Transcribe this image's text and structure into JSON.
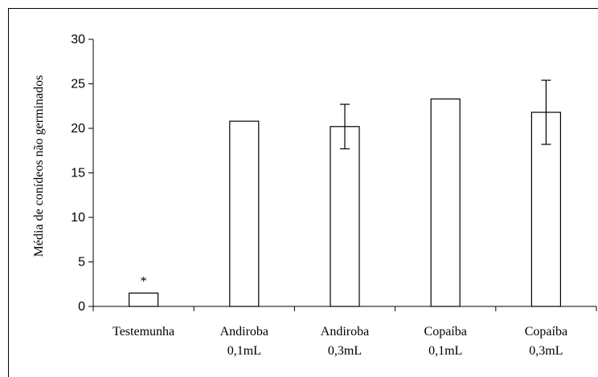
{
  "chart_data": {
    "type": "bar",
    "title": "",
    "xlabel": "",
    "ylabel": "Média de conídeos não germinados",
    "ylim": [
      0,
      30
    ],
    "yticks": [
      0,
      5,
      10,
      15,
      20,
      25,
      30
    ],
    "grid": false,
    "legend": "none",
    "categories": [
      [
        "Testemunha"
      ],
      [
        "Andiroba",
        "0,1mL"
      ],
      [
        "Andiroba",
        "0,3mL"
      ],
      [
        "Copaíba",
        "0,1mL"
      ],
      [
        "Copaíba",
        "0,3mL"
      ]
    ],
    "values": [
      1.5,
      20.8,
      20.2,
      23.3,
      21.8
    ],
    "error_bars": [
      null,
      null,
      2.5,
      null,
      3.6
    ],
    "annotations": [
      {
        "category_index": 0,
        "text": "*"
      }
    ],
    "bar_fill": "#ffffff",
    "bar_stroke": "#000000"
  }
}
